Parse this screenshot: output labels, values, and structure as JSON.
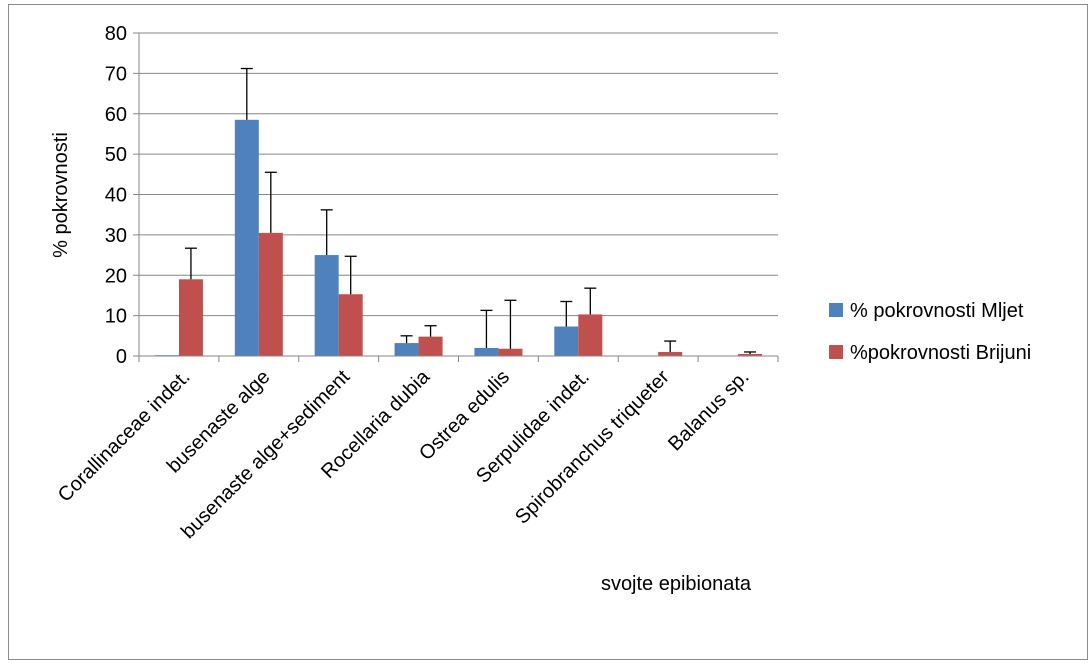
{
  "chart_data": {
    "type": "bar",
    "title": "",
    "xlabel": "svojte epibionata",
    "ylabel": "% pokrovnosti",
    "ylim": [
      0,
      80
    ],
    "yticks": [
      0,
      10,
      20,
      30,
      40,
      50,
      60,
      70,
      80
    ],
    "grid": true,
    "legend_position": "right",
    "error_bars": true,
    "categories": [
      "Corallinaceae indet.",
      "busenaste alge",
      "busenaste alge+sediment",
      "Rocellaria dubia",
      "Ostrea edulis",
      "Serpulidae indet.",
      "Spirobranchus triqueter",
      "Balanus sp."
    ],
    "series": [
      {
        "name": "% pokrovnosti Mljet",
        "color": "#4f81bd",
        "values": [
          0.2,
          58.5,
          25,
          3.2,
          2,
          7.3,
          0.1,
          0.1
        ],
        "errors": [
          0,
          12.7,
          11.2,
          1.8,
          9.3,
          6.2,
          0,
          0
        ]
      },
      {
        "name": "%pokrovnosti Brijuni",
        "color": "#c0504d",
        "values": [
          19,
          30.5,
          15.3,
          4.8,
          1.8,
          10.3,
          1,
          0.5
        ],
        "errors": [
          7.7,
          15,
          9.4,
          2.7,
          12,
          6.5,
          2.7,
          0.5
        ]
      }
    ]
  }
}
